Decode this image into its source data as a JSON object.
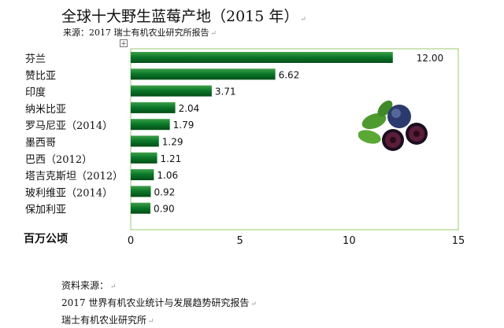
{
  "title": "全球十大野生蓝莓产地（2015 年）",
  "subtitle": "来源：2017 瑞士有机农业研究所报告",
  "chart_data": {
    "type": "bar",
    "orientation": "horizontal",
    "categories": [
      "芬兰",
      "赞比亚",
      "印度",
      "纳米比亚",
      "罗马尼亚（2014）",
      "墨西哥",
      "巴西（2012）",
      "塔吉克斯坦（2012）",
      "玻利维亚（2014）",
      "保加利亚"
    ],
    "values": [
      12.0,
      6.62,
      3.71,
      2.04,
      1.79,
      1.29,
      1.21,
      1.06,
      0.92,
      0.9
    ],
    "value_labels": [
      "12.00",
      "6.62",
      "3.71",
      "2.04",
      "1.79",
      "1.29",
      "1.21",
      "1.06",
      "0.92",
      "0.90"
    ],
    "xlim": [
      0,
      15
    ],
    "xticks": [
      "0",
      "5",
      "10",
      "15"
    ],
    "unit_label": "百万公顷",
    "bar_color": "#0b7a2a",
    "frame_color": "#9acd6b",
    "grid": true
  },
  "source": {
    "heading": "资料来源：",
    "line1": "2017 世界有机农业统计与发展趋势研究报告",
    "line2": "瑞士有机农业研究所"
  },
  "image": {
    "name": "blueberry-photo"
  }
}
